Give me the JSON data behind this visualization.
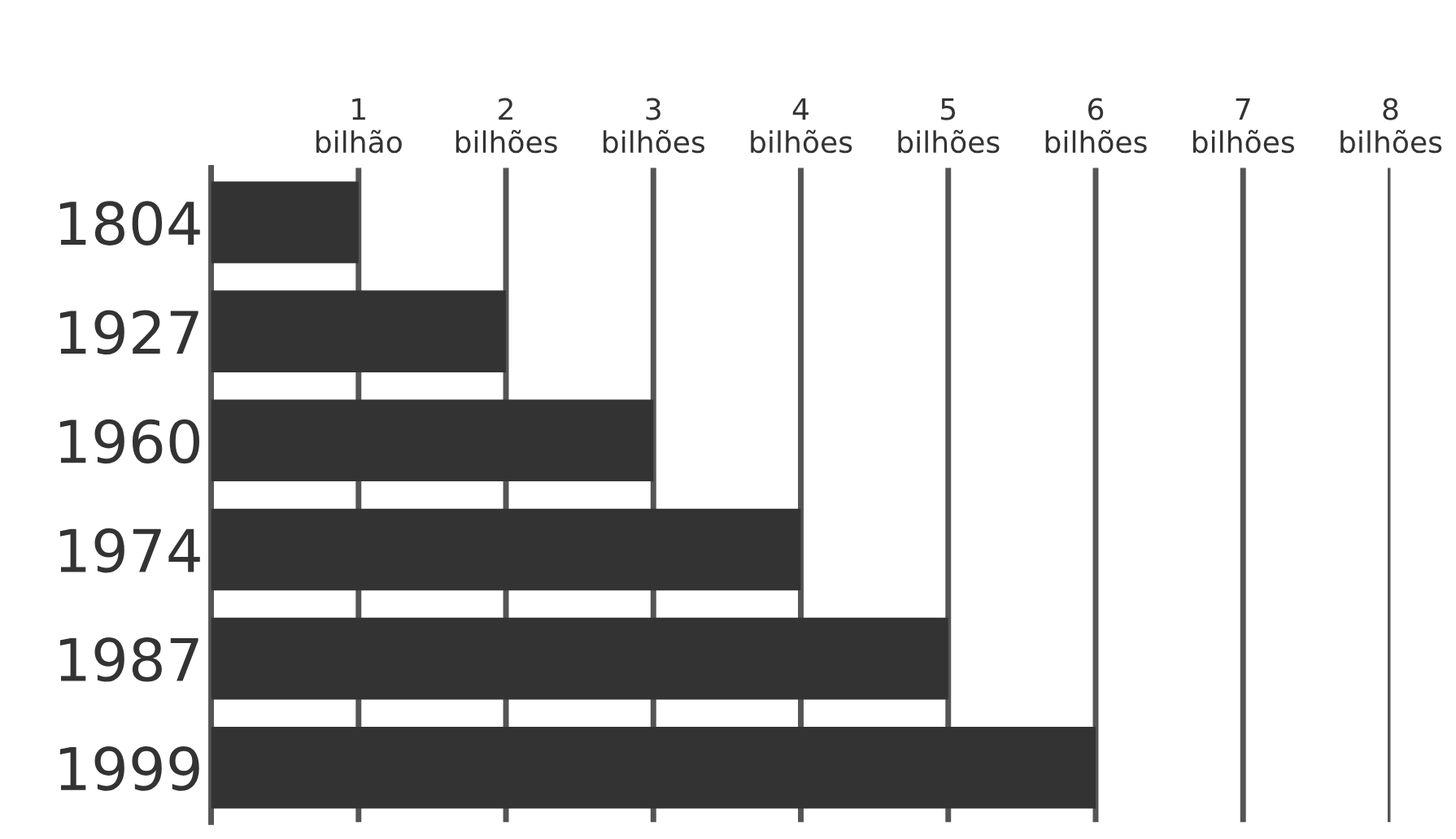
{
  "chart_data": {
    "type": "bar",
    "orientation": "horizontal",
    "categories": [
      "1804",
      "1927",
      "1960",
      "1974",
      "1987",
      "1999"
    ],
    "values": [
      1,
      2,
      3,
      4,
      5,
      6
    ],
    "color": "#333333",
    "xlim": [
      0,
      8
    ],
    "xticks": [
      {
        "value": 1,
        "label": "1\nbilhão"
      },
      {
        "value": 2,
        "label": "2\nbilhões"
      },
      {
        "value": 3,
        "label": "3\nbilhões"
      },
      {
        "value": 4,
        "label": "4\nbilhões"
      },
      {
        "value": 5,
        "label": "5\nbilhões"
      },
      {
        "value": 6,
        "label": "6\nbilhões"
      },
      {
        "value": 7,
        "label": "7\nbilhões"
      },
      {
        "value": 8,
        "label": "8\nbilhões"
      }
    ],
    "grid": "x"
  }
}
